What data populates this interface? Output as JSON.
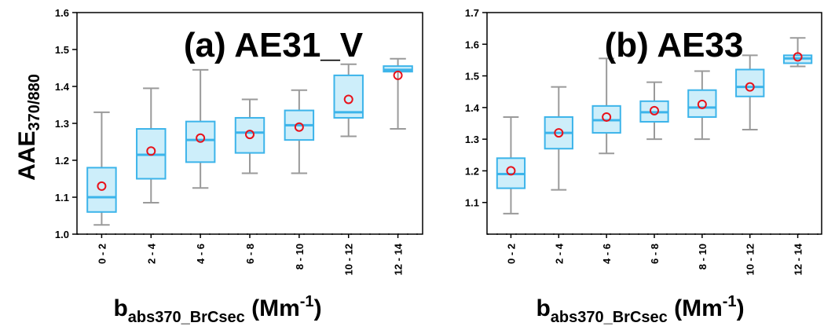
{
  "figure": {
    "ylabel_main": "AAE",
    "ylabel_sub": "370/880",
    "xlabel_main": "b",
    "xlabel_sub": "abs370_BrCsec",
    "xlabel_unit": " (Mm",
    "xlabel_exp": "-1",
    "xlabel_close": ")"
  },
  "colors": {
    "box_fill": "#cdeefa",
    "box_edge": "#3cb4ea",
    "whisker": "#9a9a9a",
    "mean_marker": "#e8121b"
  },
  "chart_data": [
    {
      "type": "box",
      "title": "(a) AE31_V",
      "categories": [
        "0 - 2",
        "2 - 4",
        "4 - 6",
        "6 - 8",
        "8 - 10",
        "10 - 12",
        "12 - 14"
      ],
      "ylim": [
        1.0,
        1.6
      ],
      "yticks": [
        "1.0",
        "1.1",
        "1.2",
        "1.3",
        "1.4",
        "1.5",
        "1.6"
      ],
      "boxes": [
        {
          "min": 1.025,
          "q1": 1.06,
          "median": 1.1,
          "q3": 1.18,
          "max": 1.33,
          "mean": 1.13
        },
        {
          "min": 1.085,
          "q1": 1.15,
          "median": 1.215,
          "q3": 1.285,
          "max": 1.395,
          "mean": 1.225
        },
        {
          "min": 1.125,
          "q1": 1.195,
          "median": 1.255,
          "q3": 1.305,
          "max": 1.445,
          "mean": 1.26
        },
        {
          "min": 1.165,
          "q1": 1.22,
          "median": 1.275,
          "q3": 1.315,
          "max": 1.365,
          "mean": 1.27
        },
        {
          "min": 1.165,
          "q1": 1.255,
          "median": 1.295,
          "q3": 1.335,
          "max": 1.39,
          "mean": 1.29
        },
        {
          "min": 1.265,
          "q1": 1.315,
          "median": 1.33,
          "q3": 1.43,
          "max": 1.46,
          "mean": 1.365
        },
        {
          "min": 1.285,
          "q1": 1.44,
          "median": 1.445,
          "q3": 1.455,
          "max": 1.475,
          "mean": 1.43
        }
      ],
      "grid": false
    },
    {
      "type": "box",
      "title": "(b) AE33",
      "categories": [
        "0 - 2",
        "2 - 4",
        "4 - 6",
        "6 - 8",
        "8 - 10",
        "10 - 12",
        "12 - 14"
      ],
      "ylim": [
        1.0,
        1.7
      ],
      "yticks": [
        "1.1",
        "1.2",
        "1.3",
        "1.4",
        "1.5",
        "1.6",
        "1.7"
      ],
      "boxes": [
        {
          "min": 1.065,
          "q1": 1.145,
          "median": 1.19,
          "q3": 1.24,
          "max": 1.37,
          "mean": 1.2
        },
        {
          "min": 1.14,
          "q1": 1.27,
          "median": 1.32,
          "q3": 1.37,
          "max": 1.465,
          "mean": 1.32
        },
        {
          "min": 1.255,
          "q1": 1.32,
          "median": 1.36,
          "q3": 1.405,
          "max": 1.555,
          "mean": 1.37
        },
        {
          "min": 1.3,
          "q1": 1.355,
          "median": 1.385,
          "q3": 1.42,
          "max": 1.48,
          "mean": 1.39
        },
        {
          "min": 1.3,
          "q1": 1.37,
          "median": 1.4,
          "q3": 1.455,
          "max": 1.515,
          "mean": 1.41
        },
        {
          "min": 1.33,
          "q1": 1.435,
          "median": 1.465,
          "q3": 1.52,
          "max": 1.565,
          "mean": 1.465
        },
        {
          "min": 1.53,
          "q1": 1.54,
          "median": 1.555,
          "q3": 1.565,
          "max": 1.62,
          "mean": 1.56
        }
      ],
      "grid": false
    }
  ]
}
